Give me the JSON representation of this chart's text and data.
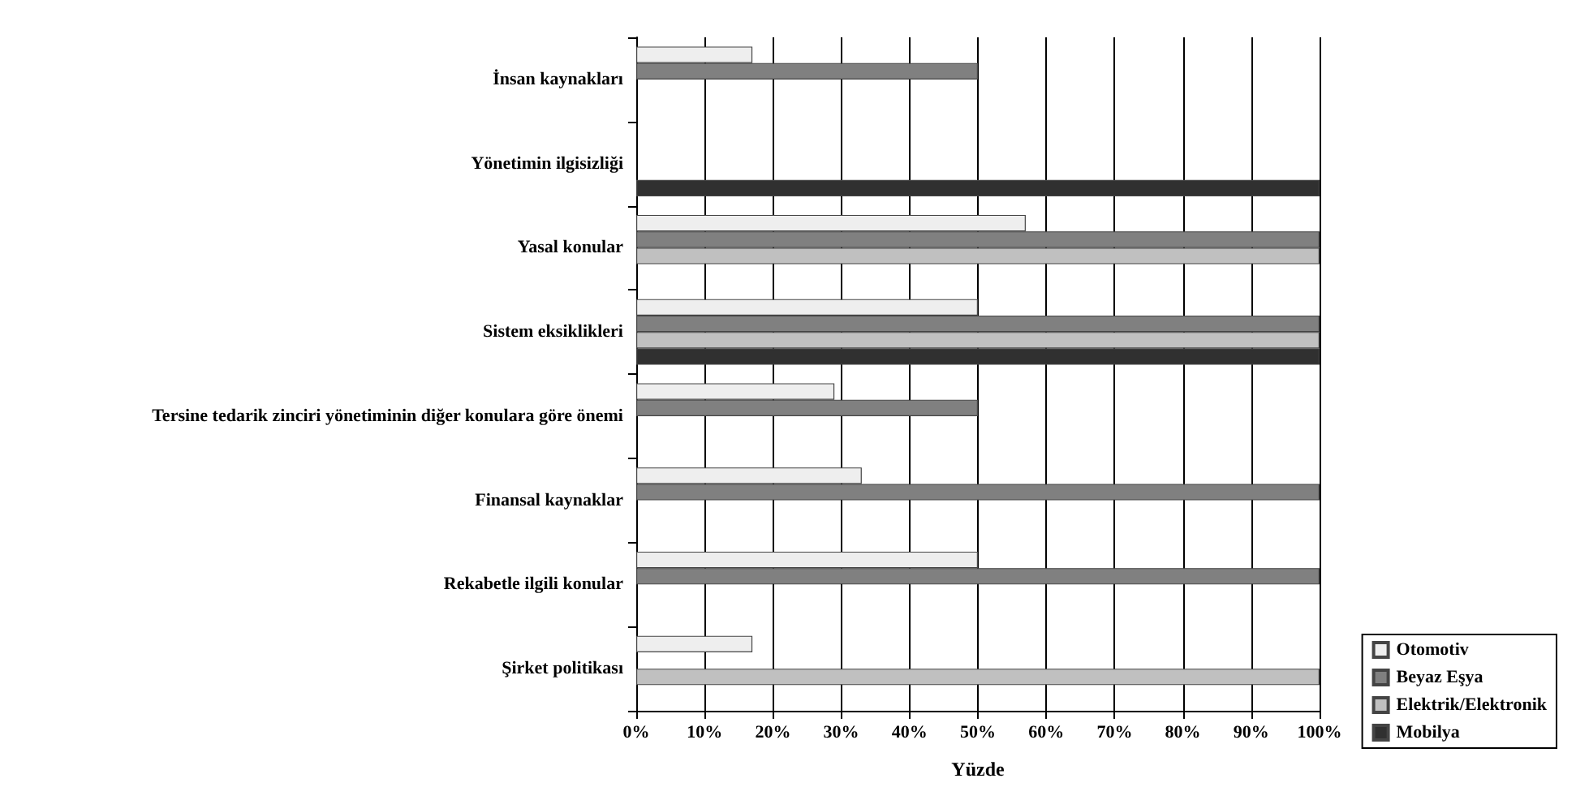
{
  "chart_data": {
    "type": "bar",
    "orientation": "horizontal",
    "xlabel": "Yüzde",
    "categories": [
      "İnsan kaynakları",
      "Yönetimin ilgisizliği",
      "Yasal konular",
      "Sistem eksiklikleri",
      "Tersine tedarik zinciri yönetiminin diğer konulara göre önemi",
      "Finansal kaynaklar",
      "Rekabetle ilgili konular",
      "Şirket politikası"
    ],
    "series": [
      {
        "name": "Otomotiv",
        "color": "#eeeeee",
        "values": [
          17,
          null,
          57,
          50,
          29,
          33,
          50,
          17
        ]
      },
      {
        "name": "Beyaz Eşya",
        "color": "#808080",
        "values": [
          50,
          null,
          100,
          100,
          50,
          100,
          100,
          null
        ]
      },
      {
        "name": "Elektrik/Elektronik",
        "color": "#c0c0c0",
        "values": [
          null,
          null,
          100,
          100,
          null,
          null,
          null,
          100
        ]
      },
      {
        "name": "Mobilya",
        "color": "#303030",
        "values": [
          null,
          100,
          null,
          100,
          null,
          null,
          null,
          null
        ]
      }
    ],
    "xlim": [
      0,
      100
    ],
    "xticks": [
      {
        "value": 0,
        "label": "0%"
      },
      {
        "value": 10,
        "label": "10%"
      },
      {
        "value": 20,
        "label": "20%"
      },
      {
        "value": 30,
        "label": "30%"
      },
      {
        "value": 40,
        "label": "40%"
      },
      {
        "value": 50,
        "label": "50%"
      },
      {
        "value": 60,
        "label": "60%"
      },
      {
        "value": 70,
        "label": "70%"
      },
      {
        "value": 80,
        "label": "80%"
      },
      {
        "value": 90,
        "label": "90%"
      },
      {
        "value": 100,
        "label": "100%"
      }
    ],
    "grid": "x",
    "legend": "bottom right"
  }
}
